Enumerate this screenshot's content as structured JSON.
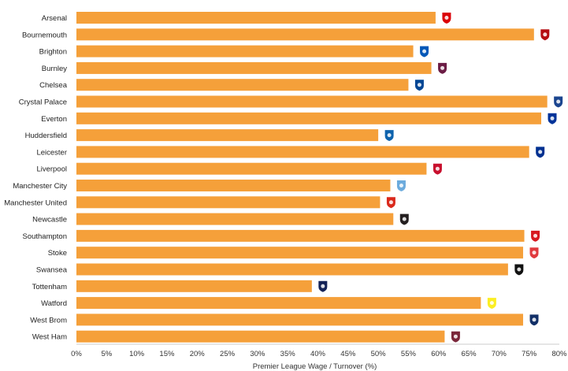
{
  "chart_data": {
    "type": "bar",
    "orientation": "horizontal",
    "categories": [
      "Arsenal",
      "Bournemouth",
      "Brighton",
      "Burnley",
      "Chelsea",
      "Crystal Palace",
      "Everton",
      "Huddersfield",
      "Leicester",
      "Liverpool",
      "Manchester City",
      "Manchester United",
      "Newcastle",
      "Southampton",
      "Stoke",
      "Swansea",
      "Tottenham",
      "Watford",
      "West Brom",
      "West Ham"
    ],
    "values": [
      59.5,
      75.8,
      55.8,
      58.8,
      55.0,
      78.0,
      77.0,
      50.0,
      75.0,
      58.0,
      52.0,
      50.3,
      52.5,
      74.2,
      74.0,
      71.5,
      39.0,
      67.0,
      74.0,
      61.0
    ],
    "title": "",
    "xlabel": "Premier League Wage / Turnover (%)",
    "ylabel": "",
    "xlim": [
      0,
      80
    ],
    "xticks": [
      "0%",
      "5%",
      "10%",
      "15%",
      "20%",
      "25%",
      "30%",
      "35%",
      "40%",
      "45%",
      "50%",
      "55%",
      "60%",
      "65%",
      "70%",
      "75%",
      "80%"
    ],
    "grid": false,
    "bar_color": "#F5A03A",
    "badge_colors": {
      "Arsenal": "#db0007",
      "Bournemouth": "#b50e12",
      "Brighton": "#0057b8",
      "Burnley": "#6c1d45",
      "Chelsea": "#034694",
      "Crystal Palace": "#1b458f",
      "Everton": "#003399",
      "Huddersfield": "#0e63ad",
      "Leicester": "#003090",
      "Liverpool": "#c8102e",
      "Manchester City": "#6cabdd",
      "Manchester United": "#da291c",
      "Newcastle": "#241f20",
      "Southampton": "#d71920",
      "Stoke": "#e03a3e",
      "Swansea": "#121212",
      "Tottenham": "#132257",
      "Watford": "#fbee23",
      "West Brom": "#122f67",
      "West Ham": "#7a263a"
    }
  }
}
